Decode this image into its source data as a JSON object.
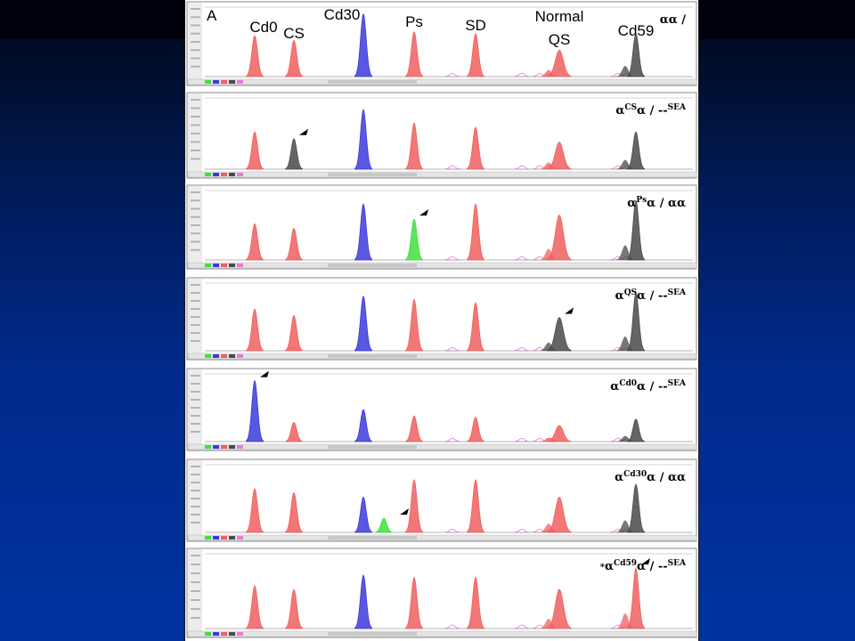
{
  "figure": {
    "panel_letter": "A",
    "peak_labels": [
      "Cd0",
      "CS",
      "Cd30",
      "Ps",
      "SD",
      "Normal",
      "QS",
      "Cd59"
    ]
  },
  "colors": {
    "red": "#f05f5f",
    "blue": "#3b3bdc",
    "gray": "#4a4a4a",
    "green": "#3ee03e",
    "pink": "#e87ad8"
  },
  "chart_data": {
    "type": "area",
    "x": [
      "Cd0",
      "CS",
      "Cd30",
      "Ps",
      "SD",
      "QS",
      "Cd59"
    ],
    "panels": [
      {
        "genotype": {
          "star": "",
          "pre": "α",
          "sup": "",
          "post": "α",
          "sep": " / ",
          "allele": "",
          "allele_sup": ""
        },
        "peaks": [
          {
            "at": "Cd0",
            "color": "red",
            "value": 0.62
          },
          {
            "at": "CS",
            "color": "red",
            "value": 0.55
          },
          {
            "at": "Cd30",
            "color": "blue",
            "value": 0.95
          },
          {
            "at": "Ps",
            "color": "red",
            "value": 0.68
          },
          {
            "at": "SD",
            "color": "red",
            "value": 0.65
          },
          {
            "at": "QS",
            "color": "red",
            "value": 0.4
          },
          {
            "at": "Cd59",
            "color": "gray",
            "value": 0.65
          }
        ]
      },
      {
        "genotype": {
          "star": "",
          "pre": "α",
          "sup": "CS",
          "post": "α",
          "sep": " / ",
          "allele": "--",
          "allele_sup": "SEA"
        },
        "arrow_at": "CS",
        "peaks": [
          {
            "at": "Cd0",
            "color": "red",
            "value": 0.55
          },
          {
            "at": "CS",
            "color": "gray",
            "value": 0.45
          },
          {
            "at": "Cd30",
            "color": "blue",
            "value": 0.88
          },
          {
            "at": "Ps",
            "color": "red",
            "value": 0.68
          },
          {
            "at": "SD",
            "color": "red",
            "value": 0.62
          },
          {
            "at": "QS",
            "color": "red",
            "value": 0.4
          },
          {
            "at": "Cd59",
            "color": "gray",
            "value": 0.55
          }
        ]
      },
      {
        "genotype": {
          "star": "",
          "pre": "α",
          "sup": "Ps",
          "post": "α",
          "sep": " / ",
          "allele": "αα",
          "allele_sup": ""
        },
        "arrow_at": "Ps",
        "peaks": [
          {
            "at": "Cd0",
            "color": "red",
            "value": 0.55
          },
          {
            "at": "CS",
            "color": "red",
            "value": 0.48
          },
          {
            "at": "Cd30",
            "color": "blue",
            "value": 0.85
          },
          {
            "at": "Ps",
            "color": "green",
            "value": 0.62
          },
          {
            "at": "SD",
            "color": "red",
            "value": 0.85
          },
          {
            "at": "QS",
            "color": "red",
            "value": 0.68
          },
          {
            "at": "Cd59",
            "color": "gray",
            "value": 0.9
          }
        ]
      },
      {
        "genotype": {
          "star": "",
          "pre": "α",
          "sup": "QS",
          "post": "α",
          "sep": " / ",
          "allele": "--",
          "allele_sup": "SEA"
        },
        "arrow_at": "QS",
        "peaks": [
          {
            "at": "Cd0",
            "color": "red",
            "value": 0.65
          },
          {
            "at": "CS",
            "color": "red",
            "value": 0.55
          },
          {
            "at": "Cd30",
            "color": "blue",
            "value": 0.85
          },
          {
            "at": "Ps",
            "color": "red",
            "value": 0.8
          },
          {
            "at": "SD",
            "color": "red",
            "value": 0.75
          },
          {
            "at": "QS",
            "color": "gray",
            "value": 0.52
          },
          {
            "at": "Cd59",
            "color": "gray",
            "value": 0.9
          }
        ]
      },
      {
        "genotype": {
          "star": "",
          "pre": "α",
          "sup": "Cd0",
          "post": "α",
          "sep": " / ",
          "allele": "--",
          "allele_sup": "SEA"
        },
        "arrow_at": "Cd0",
        "peaks": [
          {
            "at": "Cd0",
            "color": "blue",
            "value": 0.95
          },
          {
            "at": "CS",
            "color": "red",
            "value": 0.3
          },
          {
            "at": "Cd30",
            "color": "blue",
            "value": 0.5
          },
          {
            "at": "Ps",
            "color": "red",
            "value": 0.4
          },
          {
            "at": "SD",
            "color": "red",
            "value": 0.38
          },
          {
            "at": "QS",
            "color": "red",
            "value": 0.25
          },
          {
            "at": "Cd59",
            "color": "gray",
            "value": 0.35
          }
        ]
      },
      {
        "genotype": {
          "star": "",
          "pre": "α",
          "sup": "Cd30",
          "post": "α",
          "sep": " / ",
          "allele": "αα",
          "allele_sup": ""
        },
        "arrow_at": "Cd30",
        "peaks": [
          {
            "at": "Cd0",
            "color": "red",
            "value": 0.68
          },
          {
            "at": "CS",
            "color": "red",
            "value": 0.62
          },
          {
            "at": "Cd30",
            "color": "blue",
            "value": 0.55
          },
          {
            "at": "Cd30",
            "color": "green",
            "value": 0.22,
            "offset": 0.23
          },
          {
            "at": "Ps",
            "color": "red",
            "value": 0.82
          },
          {
            "at": "SD",
            "color": "red",
            "value": 0.82
          },
          {
            "at": "QS",
            "color": "red",
            "value": 0.55
          },
          {
            "at": "Cd59",
            "color": "gray",
            "value": 0.75
          }
        ]
      },
      {
        "genotype": {
          "star": "*",
          "pre": "α",
          "sup": "Cd59",
          "post": "α",
          "sep": " / ",
          "allele": "--",
          "allele_sup": "SEA"
        },
        "arrow_at": "Cd59",
        "peaks": [
          {
            "at": "Cd0",
            "color": "red",
            "value": 0.6
          },
          {
            "at": "CS",
            "color": "red",
            "value": 0.55
          },
          {
            "at": "Cd30",
            "color": "blue",
            "value": 0.75
          },
          {
            "at": "Ps",
            "color": "red",
            "value": 0.72
          },
          {
            "at": "SD",
            "color": "red",
            "value": 0.72
          },
          {
            "at": "QS",
            "color": "red",
            "value": 0.55
          },
          {
            "at": "Cd59",
            "color": "red",
            "value": 0.85
          }
        ]
      }
    ]
  }
}
